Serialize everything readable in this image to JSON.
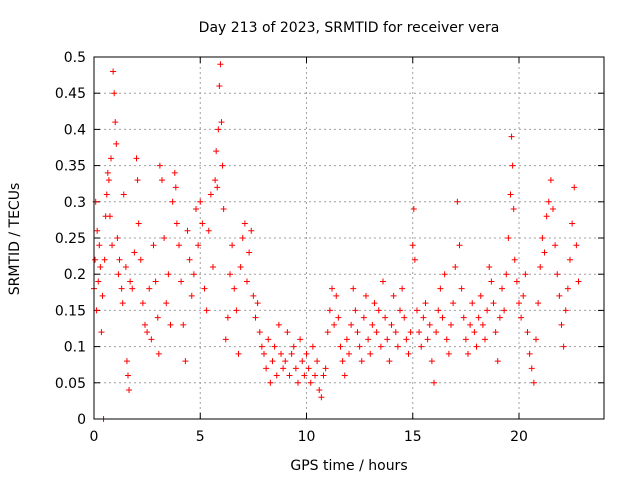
{
  "chart_data": {
    "type": "scatter",
    "title": "Day 213 of 2023, SRMTID for receiver vera",
    "xlabel": "GPS time / hours",
    "ylabel": "SRMTID / TECUs",
    "xlim": [
      0,
      24
    ],
    "ylim": [
      0,
      0.5
    ],
    "x_ticks": [
      0,
      5,
      10,
      15,
      20
    ],
    "x_tick_labels": [
      "0",
      "5",
      "10",
      "15",
      "20"
    ],
    "y_ticks": [
      0,
      0.05,
      0.1,
      0.15,
      0.2,
      0.25,
      0.3,
      0.35,
      0.4,
      0.45,
      0.5
    ],
    "y_tick_labels": [
      "0",
      "0.05",
      "0.1",
      "0.15",
      "0.2",
      "0.25",
      "0.3",
      "0.35",
      "0.4",
      "0.45",
      "0.5"
    ],
    "grid": true,
    "marker": "+",
    "color": "#ff0000",
    "series": [
      {
        "name": "SRMTID",
        "points": [
          [
            0.0,
            0.18
          ],
          [
            0.05,
            0.22
          ],
          [
            0.08,
            0.3
          ],
          [
            0.12,
            0.15
          ],
          [
            0.15,
            0.26
          ],
          [
            0.2,
            0.19
          ],
          [
            0.25,
            0.24
          ],
          [
            0.3,
            0.21
          ],
          [
            0.35,
            0.12
          ],
          [
            0.4,
            0.17
          ],
          [
            0.45,
            0.0
          ],
          [
            0.5,
            0.22
          ],
          [
            0.55,
            0.28
          ],
          [
            0.6,
            0.31
          ],
          [
            0.65,
            0.34
          ],
          [
            0.7,
            0.33
          ],
          [
            0.75,
            0.28
          ],
          [
            0.8,
            0.36
          ],
          [
            0.85,
            0.24
          ],
          [
            0.9,
            0.48
          ],
          [
            0.95,
            0.45
          ],
          [
            1.0,
            0.41
          ],
          [
            1.05,
            0.38
          ],
          [
            1.1,
            0.25
          ],
          [
            1.15,
            0.2
          ],
          [
            1.2,
            0.22
          ],
          [
            1.3,
            0.18
          ],
          [
            1.35,
            0.16
          ],
          [
            1.4,
            0.31
          ],
          [
            1.5,
            0.21
          ],
          [
            1.55,
            0.08
          ],
          [
            1.6,
            0.06
          ],
          [
            1.65,
            0.04
          ],
          [
            1.7,
            0.19
          ],
          [
            1.8,
            0.18
          ],
          [
            1.9,
            0.23
          ],
          [
            2.0,
            0.36
          ],
          [
            2.05,
            0.33
          ],
          [
            2.1,
            0.27
          ],
          [
            2.2,
            0.22
          ],
          [
            2.3,
            0.16
          ],
          [
            2.4,
            0.13
          ],
          [
            2.5,
            0.12
          ],
          [
            2.6,
            0.18
          ],
          [
            2.7,
            0.11
          ],
          [
            2.8,
            0.24
          ],
          [
            2.9,
            0.19
          ],
          [
            3.0,
            0.14
          ],
          [
            3.05,
            0.09
          ],
          [
            3.1,
            0.35
          ],
          [
            3.2,
            0.33
          ],
          [
            3.3,
            0.25
          ],
          [
            3.4,
            0.16
          ],
          [
            3.5,
            0.2
          ],
          [
            3.6,
            0.13
          ],
          [
            3.7,
            0.3
          ],
          [
            3.8,
            0.34
          ],
          [
            3.85,
            0.32
          ],
          [
            3.9,
            0.27
          ],
          [
            4.0,
            0.24
          ],
          [
            4.1,
            0.19
          ],
          [
            4.2,
            0.13
          ],
          [
            4.3,
            0.08
          ],
          [
            4.4,
            0.26
          ],
          [
            4.5,
            0.22
          ],
          [
            4.6,
            0.17
          ],
          [
            4.7,
            0.2
          ],
          [
            4.8,
            0.29
          ],
          [
            4.9,
            0.24
          ],
          [
            5.0,
            0.3
          ],
          [
            5.1,
            0.27
          ],
          [
            5.2,
            0.18
          ],
          [
            5.3,
            0.15
          ],
          [
            5.4,
            0.26
          ],
          [
            5.5,
            0.31
          ],
          [
            5.6,
            0.21
          ],
          [
            5.7,
            0.33
          ],
          [
            5.75,
            0.37
          ],
          [
            5.8,
            0.32
          ],
          [
            5.85,
            0.4
          ],
          [
            5.9,
            0.46
          ],
          [
            5.95,
            0.49
          ],
          [
            6.0,
            0.41
          ],
          [
            6.05,
            0.35
          ],
          [
            6.1,
            0.29
          ],
          [
            6.2,
            0.11
          ],
          [
            6.3,
            0.14
          ],
          [
            6.4,
            0.2
          ],
          [
            6.5,
            0.24
          ],
          [
            6.6,
            0.18
          ],
          [
            6.7,
            0.15
          ],
          [
            6.8,
            0.09
          ],
          [
            6.9,
            0.21
          ],
          [
            7.0,
            0.25
          ],
          [
            7.1,
            0.27
          ],
          [
            7.2,
            0.19
          ],
          [
            7.3,
            0.23
          ],
          [
            7.4,
            0.26
          ],
          [
            7.5,
            0.17
          ],
          [
            7.6,
            0.14
          ],
          [
            7.7,
            0.16
          ],
          [
            7.8,
            0.12
          ],
          [
            7.9,
            0.1
          ],
          [
            8.0,
            0.09
          ],
          [
            8.1,
            0.07
          ],
          [
            8.2,
            0.11
          ],
          [
            8.3,
            0.05
          ],
          [
            8.4,
            0.08
          ],
          [
            8.5,
            0.1
          ],
          [
            8.6,
            0.06
          ],
          [
            8.7,
            0.13
          ],
          [
            8.8,
            0.09
          ],
          [
            8.9,
            0.07
          ],
          [
            9.0,
            0.08
          ],
          [
            9.1,
            0.12
          ],
          [
            9.2,
            0.06
          ],
          [
            9.3,
            0.09
          ],
          [
            9.4,
            0.1
          ],
          [
            9.5,
            0.07
          ],
          [
            9.6,
            0.05
          ],
          [
            9.7,
            0.11
          ],
          [
            9.8,
            0.08
          ],
          [
            9.9,
            0.06
          ],
          [
            10.0,
            0.09
          ],
          [
            10.1,
            0.07
          ],
          [
            10.2,
            0.05
          ],
          [
            10.3,
            0.1
          ],
          [
            10.4,
            0.06
          ],
          [
            10.5,
            0.08
          ],
          [
            10.6,
            0.04
          ],
          [
            10.7,
            0.03
          ],
          [
            10.8,
            0.06
          ],
          [
            10.9,
            0.07
          ],
          [
            11.0,
            0.12
          ],
          [
            11.1,
            0.15
          ],
          [
            11.2,
            0.18
          ],
          [
            11.3,
            0.13
          ],
          [
            11.4,
            0.17
          ],
          [
            11.5,
            0.14
          ],
          [
            11.6,
            0.1
          ],
          [
            11.7,
            0.08
          ],
          [
            11.8,
            0.06
          ],
          [
            11.9,
            0.11
          ],
          [
            12.0,
            0.09
          ],
          [
            12.1,
            0.13
          ],
          [
            12.2,
            0.18
          ],
          [
            12.3,
            0.15
          ],
          [
            12.4,
            0.12
          ],
          [
            12.5,
            0.1
          ],
          [
            12.6,
            0.08
          ],
          [
            12.7,
            0.14
          ],
          [
            12.8,
            0.17
          ],
          [
            12.9,
            0.11
          ],
          [
            13.0,
            0.09
          ],
          [
            13.1,
            0.13
          ],
          [
            13.2,
            0.16
          ],
          [
            13.3,
            0.12
          ],
          [
            13.4,
            0.15
          ],
          [
            13.5,
            0.1
          ],
          [
            13.6,
            0.19
          ],
          [
            13.7,
            0.14
          ],
          [
            13.8,
            0.11
          ],
          [
            13.9,
            0.08
          ],
          [
            14.0,
            0.13
          ],
          [
            14.1,
            0.17
          ],
          [
            14.2,
            0.12
          ],
          [
            14.3,
            0.1
          ],
          [
            14.4,
            0.15
          ],
          [
            14.5,
            0.18
          ],
          [
            14.6,
            0.14
          ],
          [
            14.7,
            0.11
          ],
          [
            14.8,
            0.09
          ],
          [
            14.9,
            0.12
          ],
          [
            15.0,
            0.24
          ],
          [
            15.05,
            0.29
          ],
          [
            15.1,
            0.22
          ],
          [
            15.2,
            0.15
          ],
          [
            15.3,
            0.12
          ],
          [
            15.4,
            0.1
          ],
          [
            15.5,
            0.14
          ],
          [
            15.6,
            0.16
          ],
          [
            15.7,
            0.11
          ],
          [
            15.8,
            0.13
          ],
          [
            15.9,
            0.08
          ],
          [
            16.0,
            0.05
          ],
          [
            16.1,
            0.12
          ],
          [
            16.2,
            0.15
          ],
          [
            16.3,
            0.18
          ],
          [
            16.4,
            0.14
          ],
          [
            16.5,
            0.2
          ],
          [
            16.6,
            0.11
          ],
          [
            16.7,
            0.09
          ],
          [
            16.8,
            0.13
          ],
          [
            16.9,
            0.16
          ],
          [
            17.0,
            0.21
          ],
          [
            17.1,
            0.3
          ],
          [
            17.2,
            0.24
          ],
          [
            17.3,
            0.18
          ],
          [
            17.4,
            0.14
          ],
          [
            17.5,
            0.11
          ],
          [
            17.6,
            0.09
          ],
          [
            17.7,
            0.13
          ],
          [
            17.8,
            0.16
          ],
          [
            17.9,
            0.12
          ],
          [
            18.0,
            0.1
          ],
          [
            18.1,
            0.14
          ],
          [
            18.2,
            0.17
          ],
          [
            18.3,
            0.13
          ],
          [
            18.4,
            0.11
          ],
          [
            18.5,
            0.15
          ],
          [
            18.6,
            0.21
          ],
          [
            18.7,
            0.19
          ],
          [
            18.8,
            0.16
          ],
          [
            18.9,
            0.12
          ],
          [
            19.0,
            0.08
          ],
          [
            19.1,
            0.14
          ],
          [
            19.2,
            0.18
          ],
          [
            19.3,
            0.15
          ],
          [
            19.4,
            0.2
          ],
          [
            19.5,
            0.25
          ],
          [
            19.6,
            0.31
          ],
          [
            19.65,
            0.39
          ],
          [
            19.7,
            0.35
          ],
          [
            19.75,
            0.29
          ],
          [
            19.8,
            0.22
          ],
          [
            19.9,
            0.19
          ],
          [
            20.0,
            0.16
          ],
          [
            20.1,
            0.14
          ],
          [
            20.2,
            0.17
          ],
          [
            20.3,
            0.2
          ],
          [
            20.4,
            0.12
          ],
          [
            20.5,
            0.09
          ],
          [
            20.6,
            0.07
          ],
          [
            20.7,
            0.05
          ],
          [
            20.8,
            0.11
          ],
          [
            20.9,
            0.16
          ],
          [
            21.0,
            0.21
          ],
          [
            21.1,
            0.25
          ],
          [
            21.2,
            0.23
          ],
          [
            21.3,
            0.28
          ],
          [
            21.4,
            0.3
          ],
          [
            21.5,
            0.33
          ],
          [
            21.6,
            0.29
          ],
          [
            21.7,
            0.24
          ],
          [
            21.8,
            0.2
          ],
          [
            21.9,
            0.17
          ],
          [
            22.0,
            0.13
          ],
          [
            22.1,
            0.1
          ],
          [
            22.2,
            0.15
          ],
          [
            22.3,
            0.18
          ],
          [
            22.4,
            0.22
          ],
          [
            22.5,
            0.27
          ],
          [
            22.6,
            0.32
          ],
          [
            22.7,
            0.24
          ],
          [
            22.8,
            0.19
          ]
        ]
      }
    ]
  }
}
